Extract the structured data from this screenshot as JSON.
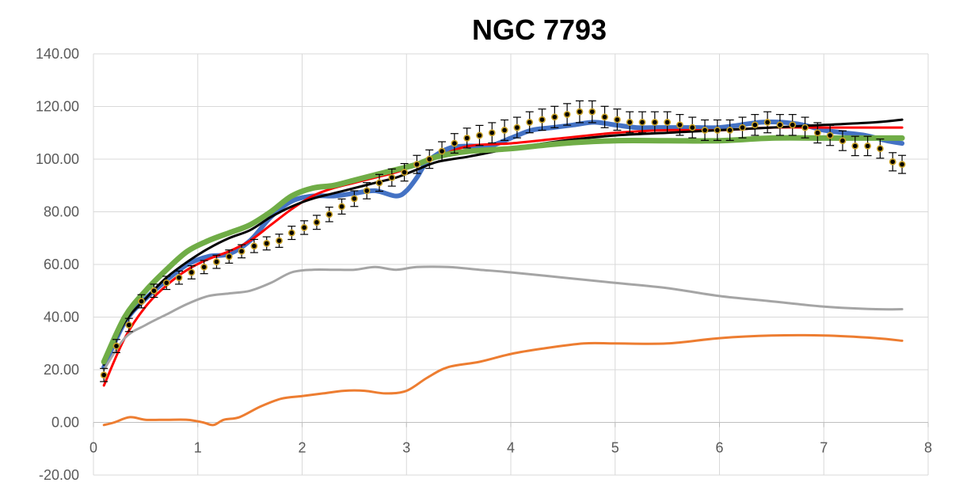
{
  "chart_data": {
    "type": "line",
    "title": "NGC 7793",
    "xlabel": "",
    "ylabel": "",
    "xlim": [
      0,
      8
    ],
    "ylim": [
      -20,
      140
    ],
    "x_ticks": [
      "0",
      "1",
      "2",
      "3",
      "4",
      "5",
      "6",
      "7",
      "8"
    ],
    "y_ticks": [
      "-20.00",
      "0.00",
      "20.00",
      "40.00",
      "60.00",
      "80.00",
      "100.00",
      "120.00",
      "140.00"
    ],
    "grid": true,
    "legend": "none",
    "observed": {
      "color": "#000000",
      "error_bar_color": "#000000",
      "marker_edge_color": "#c9a227",
      "x": [
        0.1,
        0.22,
        0.34,
        0.46,
        0.58,
        0.7,
        0.82,
        0.94,
        1.06,
        1.18,
        1.3,
        1.42,
        1.54,
        1.66,
        1.78,
        1.9,
        2.02,
        2.14,
        2.26,
        2.38,
        2.5,
        2.62,
        2.74,
        2.86,
        2.98,
        3.1,
        3.22,
        3.34,
        3.46,
        3.58,
        3.7,
        3.82,
        3.94,
        4.06,
        4.18,
        4.3,
        4.42,
        4.54,
        4.66,
        4.78,
        4.9,
        5.02,
        5.14,
        5.26,
        5.38,
        5.5,
        5.62,
        5.74,
        5.86,
        5.98,
        6.1,
        6.22,
        6.34,
        6.46,
        6.58,
        6.7,
        6.82,
        6.94,
        7.06,
        7.18,
        7.3,
        7.42,
        7.54,
        7.66,
        7.75
      ],
      "y": [
        18,
        29,
        37,
        46,
        50,
        53,
        55,
        57,
        59,
        61,
        63,
        65,
        67,
        68,
        69,
        72,
        74,
        76,
        79,
        82,
        85,
        88,
        91,
        93,
        95,
        98,
        100,
        103,
        106,
        108,
        109,
        110,
        111,
        112,
        114,
        115,
        116,
        117,
        118,
        118,
        116,
        115,
        114,
        114,
        114,
        114,
        113,
        112,
        111,
        111,
        111,
        112,
        113,
        114,
        113,
        113,
        112,
        110,
        109,
        107,
        105,
        105,
        104,
        99,
        98
      ]
    },
    "series": [
      {
        "color": "#4472c4",
        "width": 6,
        "x": [
          0.1,
          0.3,
          0.5,
          0.7,
          0.9,
          1.1,
          1.3,
          1.5,
          1.7,
          1.9,
          2.1,
          2.3,
          2.5,
          2.7,
          2.9,
          3.0,
          3.1,
          3.2,
          3.4,
          3.6,
          3.8,
          4.0,
          4.2,
          4.4,
          4.6,
          4.8,
          5.0,
          5.2,
          5.4,
          5.6,
          5.8,
          6.0,
          6.2,
          6.4,
          6.6,
          6.8,
          7.0,
          7.2,
          7.4,
          7.6,
          7.75
        ],
        "y": [
          21,
          38,
          47,
          54,
          60,
          63,
          64,
          69,
          78,
          84,
          86,
          86,
          87,
          88,
          86,
          88,
          93,
          99,
          104,
          105,
          105,
          108,
          111,
          112,
          113,
          114,
          113,
          112,
          112,
          112,
          112,
          112,
          113,
          114,
          114,
          113,
          111,
          110,
          109,
          107,
          106
        ]
      },
      {
        "color": "#ff0000",
        "width": 3,
        "x": [
          0.1,
          0.3,
          0.5,
          0.7,
          0.9,
          1.1,
          1.3,
          1.5,
          1.7,
          1.9,
          2.1,
          2.3,
          2.5,
          2.7,
          2.9,
          3.1,
          3.3,
          3.6,
          4.0,
          4.5,
          5.0,
          5.5,
          6.0,
          6.5,
          7.0,
          7.5,
          7.75
        ],
        "y": [
          14,
          32,
          44,
          52,
          58,
          62,
          65,
          69,
          75,
          81,
          86,
          89,
          91,
          93,
          95,
          98,
          101,
          105,
          106,
          108,
          110,
          111,
          111,
          112,
          112,
          112,
          112
        ]
      },
      {
        "color": "#000000",
        "width": 3,
        "x": [
          0.1,
          0.3,
          0.5,
          0.7,
          0.9,
          1.1,
          1.3,
          1.5,
          1.7,
          1.9,
          2.1,
          2.3,
          2.5,
          2.7,
          2.9,
          3.1,
          3.3,
          3.6,
          4.0,
          4.5,
          5.0,
          5.5,
          6.0,
          6.5,
          7.0,
          7.5,
          7.75
        ],
        "y": [
          22,
          38,
          47,
          55,
          61,
          66,
          70,
          73,
          78,
          82,
          85,
          87,
          89,
          91,
          93,
          96,
          99,
          101,
          104,
          107,
          109,
          110,
          111,
          112,
          113,
          114,
          115
        ]
      },
      {
        "color": "#70ad47",
        "width": 7,
        "x": [
          0.1,
          0.3,
          0.5,
          0.7,
          0.9,
          1.1,
          1.3,
          1.5,
          1.7,
          1.9,
          2.1,
          2.3,
          2.5,
          2.7,
          2.9,
          3.1,
          3.3,
          3.6,
          4.0,
          4.5,
          5.0,
          5.5,
          6.0,
          6.5,
          7.0,
          7.5,
          7.75
        ],
        "y": [
          23,
          40,
          50,
          58,
          65,
          69,
          72,
          75,
          80,
          86,
          89,
          90,
          92,
          94,
          96,
          98,
          101,
          103,
          104,
          106,
          107,
          107,
          107,
          108,
          108,
          108,
          108
        ]
      },
      {
        "color": "#a5a5a5",
        "width": 3,
        "x": [
          0.1,
          0.3,
          0.5,
          0.7,
          0.9,
          1.1,
          1.3,
          1.5,
          1.7,
          1.9,
          2.1,
          2.3,
          2.5,
          2.7,
          2.9,
          3.1,
          3.4,
          3.7,
          4.0,
          4.5,
          5.0,
          5.5,
          6.0,
          6.5,
          7.0,
          7.5,
          7.75
        ],
        "y": [
          20,
          32,
          37,
          41,
          45,
          48,
          49,
          50,
          53,
          57,
          58,
          58,
          58,
          59,
          58,
          59,
          59,
          58,
          57,
          55,
          53,
          51,
          48,
          46,
          44,
          43,
          43
        ]
      },
      {
        "color": "#ed7d31",
        "width": 3,
        "x": [
          0.1,
          0.2,
          0.35,
          0.5,
          0.7,
          0.9,
          1.05,
          1.15,
          1.25,
          1.4,
          1.6,
          1.8,
          2.0,
          2.2,
          2.4,
          2.6,
          2.8,
          3.0,
          3.2,
          3.4,
          3.7,
          4.0,
          4.3,
          4.7,
          5.0,
          5.5,
          6.0,
          6.5,
          7.0,
          7.5,
          7.75
        ],
        "y": [
          -1,
          0,
          2,
          1,
          1,
          1,
          0,
          -1,
          1,
          2,
          6,
          9,
          10,
          11,
          12,
          12,
          11,
          12,
          17,
          21,
          23,
          26,
          28,
          30,
          30,
          30,
          32,
          33,
          33,
          32,
          31
        ]
      }
    ]
  }
}
